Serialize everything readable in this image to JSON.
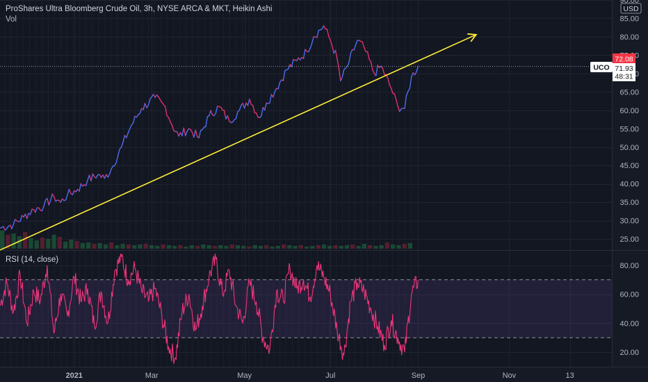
{
  "header": {
    "title": "ProShares Ultra Bloomberg Crude Oil, 3h, NYSE ARCA & MKT, Heikin Ashi",
    "vol_label": "Vol",
    "currency": "USD"
  },
  "price_tags": {
    "symbol": "UCO",
    "high_tag": "72.08",
    "last_price": "71.93",
    "countdown": "48:31"
  },
  "rsi_label": "RSI (14, close)",
  "colors": {
    "background": "#161a25",
    "price_line_up": "#4c6cf0",
    "price_line_down": "#e0306e",
    "trendline": "#ffee3a",
    "rsi_line": "#f0357a",
    "rsi_band": "#7e57c2",
    "tag_red": "#f23645"
  },
  "chart_data": [
    {
      "type": "line",
      "title": "ProShares Ultra Bloomberg Crude Oil, 3h, NYSE ARCA & MKT, Heikin Ashi",
      "x_ticks": [
        "2021",
        "Mar",
        "May",
        "Jul",
        "Sep",
        "Nov",
        "13"
      ],
      "y_ticks": [
        25,
        30,
        35,
        40,
        45,
        50,
        55,
        60,
        65,
        70,
        75,
        80,
        85,
        90
      ],
      "ylim": [
        22,
        90
      ],
      "xlim": [
        0,
        16.9
      ],
      "grid": true,
      "series": [
        {
          "values": [
            [
              0,
              28
            ],
            [
              0.4,
              29
            ],
            [
              0.7,
              31
            ],
            [
              1.0,
              33
            ],
            [
              1.3,
              34
            ],
            [
              1.6,
              36.5
            ],
            [
              1.8,
              35
            ],
            [
              2.0,
              37
            ],
            [
              2.3,
              38.5
            ],
            [
              2.6,
              41
            ],
            [
              2.9,
              42.5
            ],
            [
              3.1,
              41.5
            ],
            [
              3.3,
              44
            ],
            [
              3.6,
              50
            ],
            [
              3.9,
              56
            ],
            [
              4.2,
              60.5
            ],
            [
              4.6,
              63.5
            ],
            [
              4.9,
              61
            ],
            [
              5.1,
              56
            ],
            [
              5.3,
              53
            ],
            [
              5.6,
              55
            ],
            [
              5.9,
              52.5
            ],
            [
              6.2,
              58.5
            ],
            [
              6.5,
              61
            ],
            [
              6.8,
              57
            ],
            [
              7.1,
              60
            ],
            [
              7.4,
              63
            ],
            [
              7.7,
              58
            ],
            [
              7.9,
              62
            ],
            [
              8.2,
              66
            ],
            [
              8.5,
              71
            ],
            [
              8.8,
              73.5
            ],
            [
              9.1,
              76
            ],
            [
              9.3,
              80
            ],
            [
              9.6,
              83
            ],
            [
              9.8,
              79
            ],
            [
              10.0,
              74
            ],
            [
              10.1,
              68
            ],
            [
              10.3,
              72
            ],
            [
              10.6,
              79
            ],
            [
              10.8,
              77
            ],
            [
              11.1,
              70
            ],
            [
              11.3,
              72
            ],
            [
              11.6,
              66
            ],
            [
              11.8,
              61
            ],
            [
              12.0,
              60.5
            ],
            [
              12.2,
              69
            ],
            [
              12.4,
              72
            ]
          ]
        }
      ],
      "trendline": {
        "from": [
          0,
          22
        ],
        "to": [
          14.1,
          80.5
        ]
      },
      "annotation": {
        "symbol": "UCO",
        "last": 71.93,
        "tag": 72.08
      },
      "volume": [
        2.6,
        2.0,
        2.2,
        1.8,
        2.4,
        1.5,
        1.2,
        1.6,
        1.4,
        2.0,
        1.7,
        1.0,
        1.3,
        1.1,
        0.8,
        0.9,
        0.7,
        0.8,
        0.6,
        0.9,
        0.5,
        0.7,
        0.6,
        0.5,
        0.6,
        0.7,
        0.5,
        0.4,
        0.6,
        0.5,
        0.4,
        0.5,
        0.3,
        0.5,
        0.4,
        0.6,
        0.5,
        0.4,
        0.5,
        0.4,
        0.6,
        0.5,
        0.4,
        0.3,
        0.5,
        0.4,
        0.5,
        0.3,
        0.4,
        0.6,
        0.5,
        0.4,
        0.5,
        0.3,
        0.4,
        0.5,
        0.6,
        0.4,
        0.5,
        0.4,
        0.5,
        0.6,
        0.4,
        0.7,
        0.5,
        0.4,
        0.5,
        0.9,
        0.6,
        0.5,
        0.7,
        0.8
      ]
    },
    {
      "type": "line",
      "title": "RSI (14, close)",
      "y_ticks": [
        20,
        40,
        60,
        80
      ],
      "ylim": [
        10,
        90
      ],
      "band": [
        30,
        70
      ],
      "series": [
        {
          "values": [
            [
              0,
              52
            ],
            [
              0.2,
              68
            ],
            [
              0.4,
              48
            ],
            [
              0.6,
              73
            ],
            [
              0.8,
              40
            ],
            [
              1.0,
              62
            ],
            [
              1.2,
              56
            ],
            [
              1.4,
              80
            ],
            [
              1.6,
              33
            ],
            [
              1.8,
              60
            ],
            [
              2.0,
              45
            ],
            [
              2.2,
              72
            ],
            [
              2.4,
              55
            ],
            [
              2.6,
              64
            ],
            [
              2.8,
              38
            ],
            [
              3.0,
              62
            ],
            [
              3.2,
              40
            ],
            [
              3.4,
              76
            ],
            [
              3.6,
              86
            ],
            [
              3.8,
              70
            ],
            [
              4.0,
              78
            ],
            [
              4.2,
              62
            ],
            [
              4.4,
              55
            ],
            [
              4.6,
              64
            ],
            [
              4.8,
              45
            ],
            [
              5.0,
              24
            ],
            [
              5.2,
              16
            ],
            [
              5.4,
              48
            ],
            [
              5.6,
              60
            ],
            [
              5.8,
              35
            ],
            [
              6.0,
              52
            ],
            [
              6.2,
              72
            ],
            [
              6.4,
              84
            ],
            [
              6.6,
              60
            ],
            [
              6.8,
              76
            ],
            [
              7.0,
              52
            ],
            [
              7.2,
              40
            ],
            [
              7.4,
              68
            ],
            [
              7.6,
              55
            ],
            [
              7.8,
              30
            ],
            [
              8.0,
              22
            ],
            [
              8.2,
              62
            ],
            [
              8.4,
              56
            ],
            [
              8.6,
              78
            ],
            [
              8.8,
              64
            ],
            [
              9.0,
              70
            ],
            [
              9.2,
              58
            ],
            [
              9.4,
              80
            ],
            [
              9.6,
              72
            ],
            [
              9.8,
              60
            ],
            [
              10.0,
              35
            ],
            [
              10.2,
              18
            ],
            [
              10.4,
              55
            ],
            [
              10.6,
              68
            ],
            [
              10.8,
              62
            ],
            [
              11.0,
              50
            ],
            [
              11.2,
              38
            ],
            [
              11.4,
              25
            ],
            [
              11.6,
              42
            ],
            [
              11.8,
              30
            ],
            [
              12.0,
              20
            ],
            [
              12.2,
              60
            ],
            [
              12.4,
              70
            ]
          ]
        }
      ]
    }
  ]
}
